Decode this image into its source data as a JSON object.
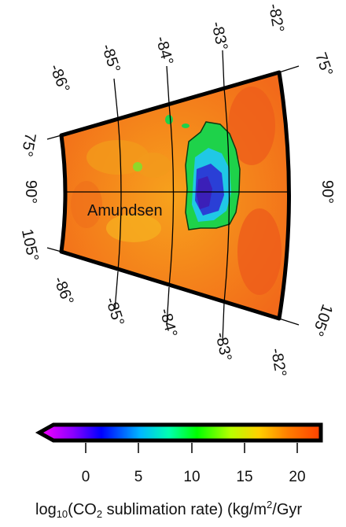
{
  "map": {
    "crater_label": "Amundsen",
    "latitude_labels_top": [
      "-86°",
      "-85°",
      "-84°",
      "-83°",
      "-82°"
    ],
    "latitude_labels_bottom": [
      "-86°",
      "-85°",
      "-84°",
      "-83°",
      "-82°"
    ],
    "longitude_labels_left": [
      "75°",
      "90°",
      "105°"
    ],
    "longitude_labels_right": [
      "75°",
      "90°",
      "105°"
    ],
    "colors": {
      "background_orange": "#f27a1c",
      "cold_trap_green": "#1ed24a",
      "cold_trap_cyan": "#20c8e6",
      "cold_trap_blue": "#2a3fd6",
      "cold_trap_violet": "#3b1fb8",
      "frame": "#000000"
    }
  },
  "colorbar": {
    "ticks": [
      "0",
      "5",
      "10",
      "15",
      "20"
    ],
    "min": -3,
    "max": 22,
    "colors": [
      "#ff00ff",
      "#8a00ff",
      "#0000ff",
      "#00b8ff",
      "#00ffb0",
      "#00ff00",
      "#b8ff00",
      "#ffd000",
      "#ff8000",
      "#ff4000"
    ]
  },
  "caption": {
    "prefix": "log",
    "sub1": "10",
    "mid": "(CO",
    "sub2": "2",
    "rest": " sublimation rate) (kg/m",
    "sup": "2",
    "end": "/Gyr"
  }
}
